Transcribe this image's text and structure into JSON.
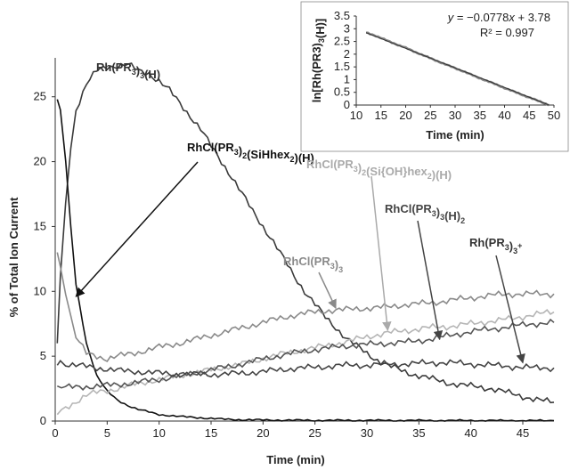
{
  "chart_data": [
    {
      "type": "line",
      "xlabel": "Time (min)",
      "ylabel": "% of Total Ion Current",
      "xlim": [
        0,
        48
      ],
      "ylim": [
        0,
        28
      ],
      "x_ticks": [
        "0",
        "5",
        "10",
        "15",
        "20",
        "25",
        "30",
        "35",
        "40",
        "45"
      ],
      "y_ticks": [
        "0",
        "5",
        "10",
        "15",
        "20",
        "25"
      ],
      "grid": false,
      "series": [
        {
          "name": "Rh(PR3)3(H)",
          "color": "#3a3a3a",
          "x": [
            0.2,
            0.5,
            1,
            1.5,
            2,
            3,
            4,
            5,
            6,
            7,
            8,
            9,
            10,
            11,
            12,
            13,
            14,
            15,
            16,
            17,
            18,
            19,
            20,
            21,
            22,
            23,
            24,
            25,
            26,
            27,
            28,
            29,
            30,
            31,
            32,
            33,
            34,
            35,
            36,
            37,
            38,
            39,
            40,
            41,
            42,
            43,
            44,
            45,
            46,
            47,
            48
          ],
          "y": [
            6,
            11,
            17,
            21,
            24,
            26,
            27,
            27.3,
            27.4,
            27.5,
            27,
            26.8,
            26.2,
            25.5,
            24.5,
            23.5,
            22.5,
            21.2,
            20,
            18.8,
            17.5,
            16.2,
            15,
            13.8,
            12.5,
            11.2,
            10,
            9,
            8,
            7.2,
            6.4,
            5.8,
            5.2,
            4.7,
            4.3,
            4,
            3.7,
            3.5,
            3.3,
            3.1,
            2.9,
            2.8,
            2.7,
            2.6,
            2.5,
            2.3,
            2.1,
            1.9,
            1.7,
            1.55,
            1.45
          ]
        },
        {
          "name": "RhCl(PR3)2(SiHhex2)(H)",
          "color": "#111111",
          "x": [
            0.2,
            0.5,
            1,
            1.5,
            2,
            3,
            4,
            5,
            6,
            7,
            8,
            9,
            10,
            12,
            14,
            16,
            18,
            20,
            25,
            30,
            35,
            40,
            45,
            48
          ],
          "y": [
            24.8,
            24,
            20,
            15,
            10.5,
            6,
            3.5,
            2.3,
            1.6,
            1.2,
            0.9,
            0.7,
            0.5,
            0.35,
            0.25,
            0.15,
            0.1,
            0.08,
            0.05,
            0.05,
            0.04,
            0.04,
            0.03,
            0.03
          ]
        },
        {
          "name": "RhCl(PR3)3",
          "color": "#8a8a8a",
          "x": [
            0.2,
            0.5,
            1,
            1.5,
            2,
            3,
            4,
            5,
            6,
            8,
            10,
            12,
            14,
            16,
            18,
            20,
            22,
            24,
            26,
            28,
            30,
            32,
            34,
            36,
            38,
            40,
            42,
            44,
            46,
            48
          ],
          "y": [
            13,
            12,
            10,
            8,
            6.5,
            5.2,
            5,
            4.8,
            5,
            5.3,
            5.7,
            6,
            6.4,
            6.8,
            7.2,
            7.6,
            8,
            8.3,
            8.5,
            8.6,
            8.7,
            8.8,
            9,
            9.1,
            9.3,
            9.5,
            9.7,
            9.8,
            9.8,
            9.8
          ]
        },
        {
          "name": "RhCl(PR3)2(Si{OH}hex2)(H)",
          "color": "#b5b5b5",
          "x": [
            0.2,
            1,
            2,
            3,
            4,
            6,
            8,
            10,
            12,
            14,
            16,
            18,
            20,
            22,
            24,
            26,
            28,
            30,
            32,
            34,
            36,
            38,
            40,
            42,
            44,
            46,
            48
          ],
          "y": [
            0.5,
            1,
            1.5,
            2,
            2.2,
            2.5,
            2.9,
            3.2,
            3.5,
            3.8,
            4.1,
            4.4,
            4.8,
            5.2,
            5.5,
            5.8,
            6.1,
            6.5,
            6.8,
            7,
            7.2,
            7.3,
            7.5,
            7.7,
            7.9,
            8.2,
            8.4
          ]
        },
        {
          "name": "RhCl(PR3)3(H)2",
          "color": "#555555",
          "x": [
            0.2,
            1,
            2,
            4,
            6,
            8,
            10,
            12,
            14,
            16,
            18,
            20,
            22,
            24,
            26,
            28,
            30,
            32,
            34,
            36,
            38,
            40,
            42,
            44,
            46,
            48
          ],
          "y": [
            2.7,
            2.6,
            2.6,
            2.7,
            2.8,
            3,
            3.2,
            3.5,
            3.8,
            4.1,
            4.4,
            4.8,
            5.1,
            5.4,
            5.6,
            5.8,
            5.9,
            6,
            6.1,
            6.3,
            6.6,
            6.9,
            7.1,
            7.3,
            7.5,
            7.6
          ]
        },
        {
          "name": "Rh(PR3)3+",
          "color": "#444444",
          "x": [
            0.2,
            0.5,
            1,
            2,
            4,
            6,
            8,
            10,
            12,
            14,
            16,
            18,
            20,
            22,
            24,
            26,
            28,
            30,
            32,
            34,
            36,
            38,
            40,
            42,
            44,
            46,
            48
          ],
          "y": [
            4.3,
            4.6,
            4.4,
            4.3,
            4.1,
            3.9,
            3.8,
            3.7,
            3.6,
            3.6,
            3.6,
            3.7,
            3.8,
            4,
            4.1,
            4.2,
            4.3,
            4.3,
            4.4,
            4.4,
            4.5,
            4.5,
            4.4,
            4.3,
            4.2,
            4.1,
            4.1
          ]
        }
      ],
      "annotations": [
        {
          "label": "Rh(PR3)3(H)",
          "series": 0
        },
        {
          "label": "RhCl(PR3)2(SiHhex2)(H)",
          "series": 1,
          "arrow_to": [
            2,
            9.6
          ]
        },
        {
          "label": "RhCl(PR3)3",
          "series": 2,
          "arrow_to": [
            27,
            8.7
          ]
        },
        {
          "label": "RhCl(PR3)2(Si{OH}hex2)(H)",
          "series": 3,
          "arrow_to": [
            32,
            7
          ]
        },
        {
          "label": "RhCl(PR3)3(H)2",
          "series": 4,
          "arrow_to": [
            37,
            6.3
          ]
        },
        {
          "label": "Rh(PR3)3+",
          "series": 5,
          "arrow_to": [
            45,
            4.5
          ]
        }
      ]
    },
    {
      "type": "scatter",
      "xlabel": "Time (min)",
      "ylabel": "ln[Rh(PR3)3(H)]",
      "xlim": [
        10,
        50
      ],
      "ylim": [
        0,
        3.5
      ],
      "x_ticks": [
        "10",
        "15",
        "20",
        "25",
        "30",
        "35",
        "40",
        "45",
        "50"
      ],
      "y_ticks": [
        "0",
        "0.5",
        "1",
        "1.5",
        "2",
        "2.5",
        "3",
        "3.5"
      ],
      "grid": false,
      "equation": "y = −0.0778x + 3.78",
      "r_squared": "R² = 0.997",
      "series": [
        {
          "color": "#888888",
          "x": [
            12,
            14,
            16,
            18,
            20,
            22,
            24,
            26,
            28,
            30,
            32,
            34,
            36,
            38,
            40,
            42,
            44,
            46,
            48,
            49
          ],
          "y": [
            2.85,
            2.72,
            2.55,
            2.4,
            2.25,
            2.08,
            1.92,
            1.76,
            1.6,
            1.45,
            1.3,
            1.13,
            0.98,
            0.83,
            0.67,
            0.52,
            0.37,
            0.22,
            0.08,
            0.0
          ]
        }
      ],
      "fit": {
        "slope": -0.0778,
        "intercept": 3.78
      }
    }
  ]
}
